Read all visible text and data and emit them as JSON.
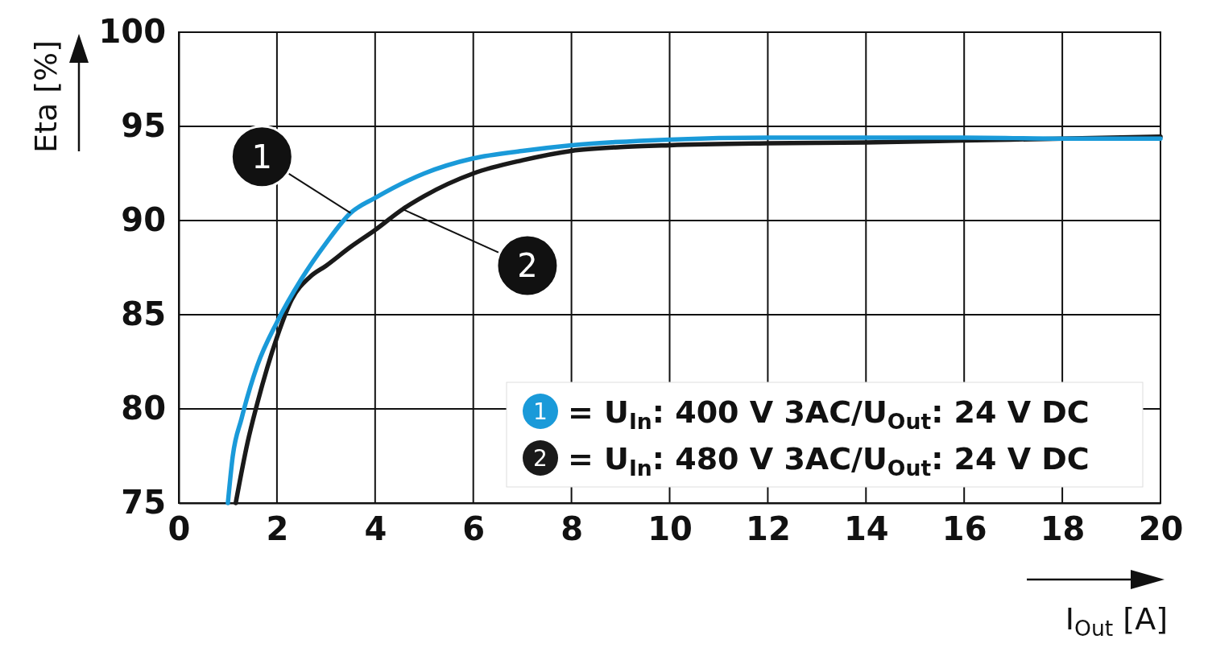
{
  "chart_data": {
    "type": "line",
    "xlabel": "I$_{Out}$ [A]",
    "ylabel": "Eta [%]",
    "xlim": [
      0,
      20
    ],
    "xticks": [
      0,
      2,
      4,
      6,
      8,
      10,
      12,
      14,
      16,
      18,
      20
    ],
    "ylim": [
      75,
      100
    ],
    "yticks": [
      75,
      80,
      85,
      90,
      95,
      100
    ],
    "grid": true,
    "legend": "bottom right",
    "line_style": "solid",
    "marker": "none",
    "series": [
      {
        "name": "= U$_{In}$: 400 V 3AC/U$_{Out}$: 24 V DC",
        "color": "#1a9ad9",
        "x": [
          1.0,
          1.1,
          1.28,
          1.6,
          2.0,
          2.5,
          3.0,
          3.5,
          4.0,
          5.0,
          6.0,
          7.0,
          8.0,
          10.0,
          12.0,
          14.0,
          16.0,
          18.0,
          20.0
        ],
        "values": [
          75,
          77.5,
          79.5,
          82.3,
          84.6,
          86.9,
          88.8,
          90.4,
          91.2,
          92.5,
          93.3,
          93.7,
          94.0,
          94.3,
          94.4,
          94.4,
          94.4,
          94.35,
          94.35
        ]
      },
      {
        "name": "= U$_{In}$: 480 V 3AC/U$_{Out}$: 24 V DC",
        "color": "#1a1a1a",
        "x": [
          1.16,
          1.4,
          1.6,
          2.0,
          2.3,
          2.67,
          3.0,
          3.5,
          4.0,
          4.56,
          5.0,
          6.0,
          7.0,
          8.0,
          9.0,
          10.0,
          12.0,
          14.0,
          16.0,
          18.0,
          20.0
        ],
        "values": [
          75,
          78.2,
          80.3,
          83.8,
          85.8,
          87.0,
          87.6,
          88.6,
          89.5,
          90.6,
          91.3,
          92.5,
          93.2,
          93.7,
          93.9,
          94.0,
          94.1,
          94.15,
          94.25,
          94.35,
          94.45
        ]
      }
    ],
    "annotations": [
      {
        "text": "1",
        "x": 3.5,
        "y": 90.4
      },
      {
        "text": "2",
        "x": 4.56,
        "y": 90.6
      }
    ]
  }
}
